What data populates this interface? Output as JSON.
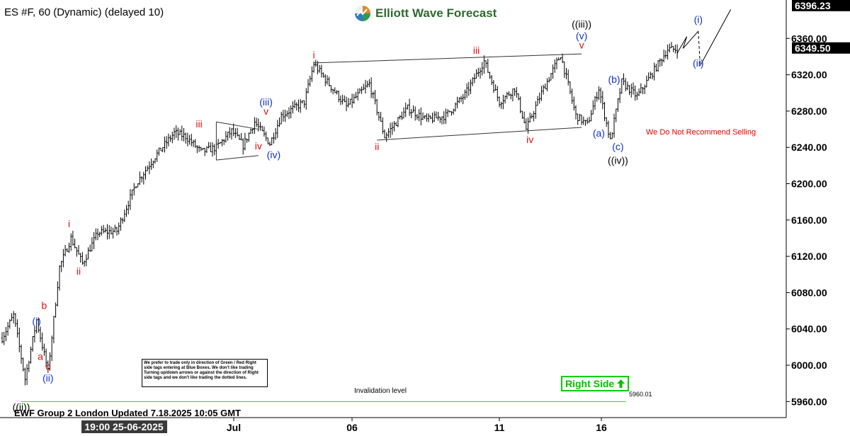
{
  "header": {
    "symbol_line": "ES #F, 60 (Dynamic) (delayed 10)",
    "brand": "Elliott Wave Forecast"
  },
  "footer": {
    "update_note": "EWF Group 2 London Updated 7.18.2025 10:05 GMT",
    "cursor_date": "19:00 25-06-2025"
  },
  "notes": {
    "disclaimer": "We prefer to trade only in direction of Green / Red Right side tags entering at Blue Boxes. We don't like trading Turning up/down arrows or against the direction of Right side tags and we don't like trading the dotted lines.",
    "right_side": "Right Side",
    "no_sell": "We Do Not Recommend Selling",
    "invalidation_label": "Invalidation level",
    "invalidation_value": "5960.01"
  },
  "colors": {
    "bars": "#000000",
    "red_labels": "#dd1111",
    "blue_labels": "#1133cc",
    "black_labels": "#000000",
    "invalidation_line": "#33cc33",
    "right_side": "#00c000"
  },
  "chart_data": {
    "type": "ohlc",
    "title": "ES #F, 60 (Dynamic) (delayed 10)",
    "ylim": [
      5940,
      6400
    ],
    "y_ticks": [
      "6360.00",
      "6320.00",
      "6280.00",
      "6240.00",
      "6200.00",
      "6160.00",
      "6120.00",
      "6080.00",
      "6040.00",
      "6000.00",
      "5960.00"
    ],
    "x_ticks": [
      "Jul",
      "06",
      "11",
      "16"
    ],
    "price_tags": [
      {
        "label": "6396.23",
        "value": 6396.23
      },
      {
        "label": "6349.50",
        "value": 6349.5
      }
    ],
    "invalidation_level": 5960.01,
    "path_points": [
      {
        "i": 0,
        "v": 6030
      },
      {
        "i": 6,
        "v": 6055
      },
      {
        "i": 12,
        "v": 5985
      },
      {
        "i": 18,
        "v": 6050
      },
      {
        "i": 24,
        "v": 5993
      },
      {
        "i": 30,
        "v": 6108
      },
      {
        "i": 36,
        "v": 6140
      },
      {
        "i": 42,
        "v": 6112
      },
      {
        "i": 50,
        "v": 6146
      },
      {
        "i": 60,
        "v": 6148
      },
      {
        "i": 70,
        "v": 6200
      },
      {
        "i": 80,
        "v": 6230
      },
      {
        "i": 90,
        "v": 6256
      },
      {
        "i": 96,
        "v": 6252
      },
      {
        "i": 104,
        "v": 6235
      },
      {
        "i": 112,
        "v": 6240
      },
      {
        "i": 120,
        "v": 6258
      },
      {
        "i": 126,
        "v": 6242
      },
      {
        "i": 132,
        "v": 6268
      },
      {
        "i": 140,
        "v": 6244
      },
      {
        "i": 146,
        "v": 6275
      },
      {
        "i": 158,
        "v": 6290
      },
      {
        "i": 163,
        "v": 6332
      },
      {
        "i": 170,
        "v": 6312
      },
      {
        "i": 180,
        "v": 6285
      },
      {
        "i": 192,
        "v": 6310
      },
      {
        "i": 200,
        "v": 6252
      },
      {
        "i": 212,
        "v": 6283
      },
      {
        "i": 222,
        "v": 6270
      },
      {
        "i": 232,
        "v": 6275
      },
      {
        "i": 242,
        "v": 6298
      },
      {
        "i": 252,
        "v": 6335
      },
      {
        "i": 260,
        "v": 6290
      },
      {
        "i": 268,
        "v": 6305
      },
      {
        "i": 274,
        "v": 6260
      },
      {
        "i": 282,
        "v": 6300
      },
      {
        "i": 292,
        "v": 6342
      },
      {
        "i": 300,
        "v": 6275
      },
      {
        "i": 306,
        "v": 6265
      },
      {
        "i": 312,
        "v": 6305
      },
      {
        "i": 318,
        "v": 6247
      },
      {
        "i": 324,
        "v": 6312
      },
      {
        "i": 332,
        "v": 6296
      },
      {
        "i": 340,
        "v": 6322
      },
      {
        "i": 348,
        "v": 6348
      },
      {
        "i": 353,
        "v": 6348
      }
    ],
    "wave_labels": [
      {
        "text": "((ii))",
        "i": 10,
        "v": 5950,
        "color": "black"
      },
      {
        "text": "(i)",
        "i": 18,
        "v": 6045,
        "color": "blue"
      },
      {
        "text": "a",
        "i": 20,
        "v": 6006,
        "color": "red"
      },
      {
        "text": "b",
        "i": 22,
        "v": 6062,
        "color": "red"
      },
      {
        "text": "c",
        "i": 24,
        "v": 5995,
        "color": "red"
      },
      {
        "text": "(ii)",
        "i": 24,
        "v": 5982,
        "color": "blue"
      },
      {
        "text": "i",
        "i": 35,
        "v": 6152,
        "color": "red"
      },
      {
        "text": "ii",
        "i": 40,
        "v": 6100,
        "color": "red"
      },
      {
        "text": "iii",
        "i": 103,
        "v": 6262,
        "color": "red"
      },
      {
        "text": "iv",
        "i": 134,
        "v": 6238,
        "color": "red"
      },
      {
        "text": "(iii)",
        "i": 138,
        "v": 6286,
        "color": "blue"
      },
      {
        "text": "v",
        "i": 138,
        "v": 6276,
        "color": "red"
      },
      {
        "text": "(iv)",
        "i": 142,
        "v": 6228,
        "color": "blue"
      },
      {
        "text": "i",
        "i": 163,
        "v": 6338,
        "color": "red"
      },
      {
        "text": "ii",
        "i": 196,
        "v": 6237,
        "color": "red"
      },
      {
        "text": "iii",
        "i": 248,
        "v": 6343,
        "color": "red"
      },
      {
        "text": "iv",
        "i": 276,
        "v": 6245,
        "color": "red"
      },
      {
        "text": "((iii))",
        "i": 303,
        "v": 6372,
        "color": "black"
      },
      {
        "text": "(v)",
        "i": 303,
        "v": 6359,
        "color": "blue"
      },
      {
        "text": "v",
        "i": 303,
        "v": 6349,
        "color": "red"
      },
      {
        "text": "(a)",
        "i": 312,
        "v": 6252,
        "color": "blue"
      },
      {
        "text": "(b)",
        "i": 320,
        "v": 6311,
        "color": "blue"
      },
      {
        "text": "(c)",
        "i": 322,
        "v": 6237,
        "color": "blue"
      },
      {
        "text": "((iv))",
        "i": 322,
        "v": 6222,
        "color": "black"
      },
      {
        "text": "(i)",
        "i": 364,
        "v": 6377,
        "color": "blue"
      },
      {
        "text": "(ii)",
        "i": 364,
        "v": 6329,
        "color": "blue"
      }
    ],
    "channel_lines": [
      {
        "from": {
          "i": 163,
          "v": 6333
        },
        "to": {
          "i": 303,
          "v": 6343
        }
      },
      {
        "from": {
          "i": 196,
          "v": 6248
        },
        "to": {
          "i": 303,
          "v": 6262
        }
      },
      {
        "from": {
          "i": 112,
          "v": 6268
        },
        "to": {
          "i": 134,
          "v": 6260
        }
      },
      {
        "from": {
          "i": 112,
          "v": 6226
        },
        "to": {
          "i": 134,
          "v": 6231
        }
      },
      {
        "from": {
          "i": 112,
          "v": 6268
        },
        "to": {
          "i": 112,
          "v": 6226
        }
      }
    ],
    "projection": [
      {
        "i": 353,
        "v": 6344
      },
      {
        "i": 358,
        "v": 6362
      },
      {
        "i": 356,
        "v": 6349
      },
      {
        "i": 364,
        "v": 6368
      },
      {
        "i": 365,
        "v": 6330
      },
      {
        "i": 381,
        "v": 6392
      }
    ]
  }
}
